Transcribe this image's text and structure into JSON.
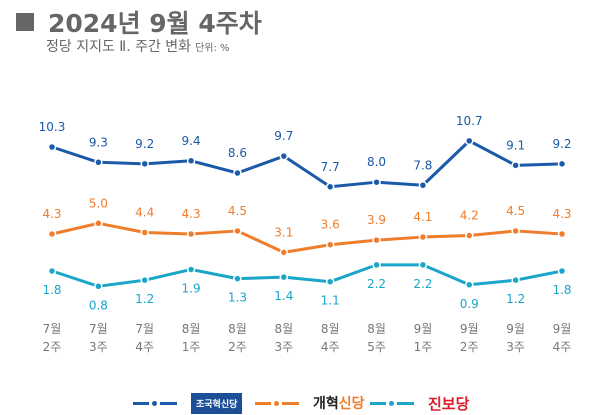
{
  "header": {
    "title": "2024년 9월 4주차",
    "subtitle": "정당 지지도 Ⅱ. 주간 변화",
    "unit": "단위: %"
  },
  "chart_data": {
    "type": "line",
    "title": "2024년 9월 4주차",
    "subtitle": "정당 지지도 Ⅱ. 주간 변화",
    "unit": "%",
    "categories": [
      [
        "7월",
        "2주"
      ],
      [
        "7월",
        "3주"
      ],
      [
        "7월",
        "4주"
      ],
      [
        "8월",
        "1주"
      ],
      [
        "8월",
        "2주"
      ],
      [
        "8월",
        "3주"
      ],
      [
        "8월",
        "4주"
      ],
      [
        "8월",
        "5주"
      ],
      [
        "9월",
        "1주"
      ],
      [
        "9월",
        "2주"
      ],
      [
        "9월",
        "3주"
      ],
      [
        "9월",
        "4주"
      ]
    ],
    "series": [
      {
        "name": "조국혁신당",
        "color": "#1a5aa8",
        "values": [
          10.3,
          9.3,
          9.2,
          9.4,
          8.6,
          9.7,
          7.7,
          8.0,
          7.8,
          10.7,
          9.1,
          9.2
        ]
      },
      {
        "name": "개혁신당",
        "color": "#ef7d2c",
        "values": [
          4.3,
          5.0,
          4.4,
          4.3,
          4.5,
          3.1,
          3.6,
          3.9,
          4.1,
          4.2,
          4.5,
          4.3
        ]
      },
      {
        "name": "진보당",
        "color": "#1aa6c8",
        "values": [
          1.8,
          0.8,
          1.2,
          1.9,
          1.3,
          1.4,
          1.1,
          2.2,
          2.2,
          0.9,
          1.2,
          1.8
        ]
      }
    ],
    "grid": false,
    "legend": "bottom",
    "label_format": "one decimal"
  },
  "legend": {
    "party1": "조국혁신당",
    "party2_a": "개혁",
    "party2_b": "신당",
    "party3": "진보당"
  }
}
